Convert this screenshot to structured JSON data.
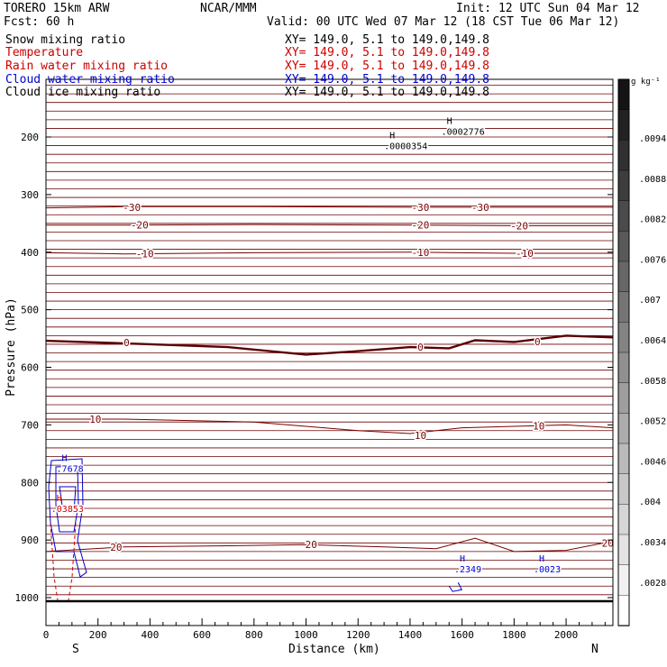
{
  "header": {
    "model": "TORERO  15km ARW",
    "center": "NCAR/MMM",
    "init": "Init: 12 UTC Sun 04 Mar 12",
    "fcst": "Fcst:   60 h",
    "valid": "Valid: 00 UTC Wed 07 Mar 12 (18 CST Tue 06 Mar 12)"
  },
  "fields": [
    {
      "name": "Snow mixing ratio",
      "xy": "XY= 149.0,  5.1 to 149.0,149.8",
      "color": "#000000"
    },
    {
      "name": "Temperature",
      "xy": "XY= 149.0,  5.1 to 149.0,149.8",
      "color": "#cc0000"
    },
    {
      "name": "Rain water mixing ratio",
      "xy": "XY= 149.0,  5.1 to 149.0,149.8",
      "color": "#cc0000"
    },
    {
      "name": "Cloud water mixing ratio",
      "xy": "XY= 149.0,  5.1 to 149.0,149.8",
      "color": "#0000cc"
    },
    {
      "name": "Cloud ice mixing ratio",
      "xy": "XY= 149.0,  5.1 to 149.0,149.8",
      "color": "#000000"
    }
  ],
  "colorbar": {
    "unit": "g kg⁻¹",
    "labels": [
      ".0094",
      ".0088",
      ".0082",
      ".0076",
      ".007",
      ".0064",
      ".0058",
      ".0052",
      ".0046",
      ".004",
      ".0034",
      ".0028"
    ]
  },
  "chart_data": {
    "type": "contour cross-section",
    "xlabel": "Distance (km)",
    "ylabel": "Pressure (hPa)",
    "xlim": [
      0,
      2180
    ],
    "ylim": [
      1050,
      80
    ],
    "xticks": [
      0,
      200,
      400,
      600,
      800,
      1000,
      1200,
      1400,
      1600,
      1800,
      2000
    ],
    "yticks": [
      200,
      300,
      400,
      500,
      600,
      700,
      800,
      900,
      1000
    ],
    "left_end_label": "S",
    "right_end_label": "N",
    "temperature_contours": [
      {
        "label": "-30",
        "points": [
          [
            0,
            323
          ],
          [
            300,
            321
          ],
          [
            800,
            321
          ],
          [
            1400,
            322
          ],
          [
            1700,
            322
          ],
          [
            2180,
            322
          ]
        ],
        "label_positions": [
          [
            330,
            322
          ],
          [
            1440,
            322
          ],
          [
            1670,
            322
          ]
        ]
      },
      {
        "label": "-20",
        "points": [
          [
            0,
            353
          ],
          [
            300,
            353
          ],
          [
            800,
            352
          ],
          [
            1400,
            353
          ],
          [
            1800,
            354
          ],
          [
            2180,
            354
          ]
        ],
        "label_positions": [
          [
            360,
            353
          ],
          [
            1440,
            353
          ],
          [
            1820,
            354
          ]
        ]
      },
      {
        "label": "-10",
        "points": [
          [
            0,
            401
          ],
          [
            300,
            403
          ],
          [
            800,
            401
          ],
          [
            1400,
            400
          ],
          [
            1800,
            402
          ],
          [
            2180,
            402
          ]
        ],
        "label_positions": [
          [
            380,
            403
          ],
          [
            1440,
            400
          ],
          [
            1840,
            402
          ]
        ]
      },
      {
        "label": "0",
        "points": [
          [
            0,
            554
          ],
          [
            400,
            560
          ],
          [
            700,
            565
          ],
          [
            1000,
            578
          ],
          [
            1200,
            572
          ],
          [
            1400,
            565
          ],
          [
            1550,
            567
          ],
          [
            1650,
            553
          ],
          [
            1800,
            556
          ],
          [
            2000,
            545
          ],
          [
            2180,
            548
          ]
        ],
        "label_positions": [
          [
            310,
            557
          ],
          [
            1440,
            565
          ],
          [
            1890,
            555
          ]
        ]
      },
      {
        "label": "10",
        "points": [
          [
            0,
            690
          ],
          [
            300,
            690
          ],
          [
            800,
            695
          ],
          [
            1200,
            710
          ],
          [
            1400,
            715
          ],
          [
            1600,
            705
          ],
          [
            2000,
            700
          ],
          [
            2180,
            705
          ]
        ],
        "label_positions": [
          [
            190,
            690
          ],
          [
            1440,
            718
          ],
          [
            1895,
            702
          ]
        ]
      },
      {
        "label": "20",
        "points": [
          [
            0,
            920
          ],
          [
            300,
            912
          ],
          [
            700,
            910
          ],
          [
            1000,
            908
          ],
          [
            1300,
            912
          ],
          [
            1500,
            915
          ],
          [
            1650,
            897
          ],
          [
            1800,
            920
          ],
          [
            2000,
            918
          ],
          [
            2180,
            902
          ]
        ],
        "label_positions": [
          [
            270,
            912
          ],
          [
            1020,
            908
          ],
          [
            2160,
            905
          ]
        ]
      }
    ],
    "cloud_water_maxima": [
      {
        "label": "H",
        "value": ".7678",
        "x": 40,
        "p": 775
      },
      {
        "label": "H",
        "value": ".2349",
        "x": 1570,
        "p": 950
      },
      {
        "label": "H",
        "value": ".0023",
        "x": 1875,
        "p": 950
      }
    ],
    "rain_water_maxima": [
      {
        "label": "H",
        "value": ".03853",
        "x": 20,
        "p": 845
      }
    ],
    "cloud_ice_maxima": [
      {
        "label": "H",
        "value": ".0002776",
        "x": 1520,
        "p": 190
      },
      {
        "label": "H",
        "value": ".0000354",
        "x": 1300,
        "p": 215
      }
    ]
  }
}
